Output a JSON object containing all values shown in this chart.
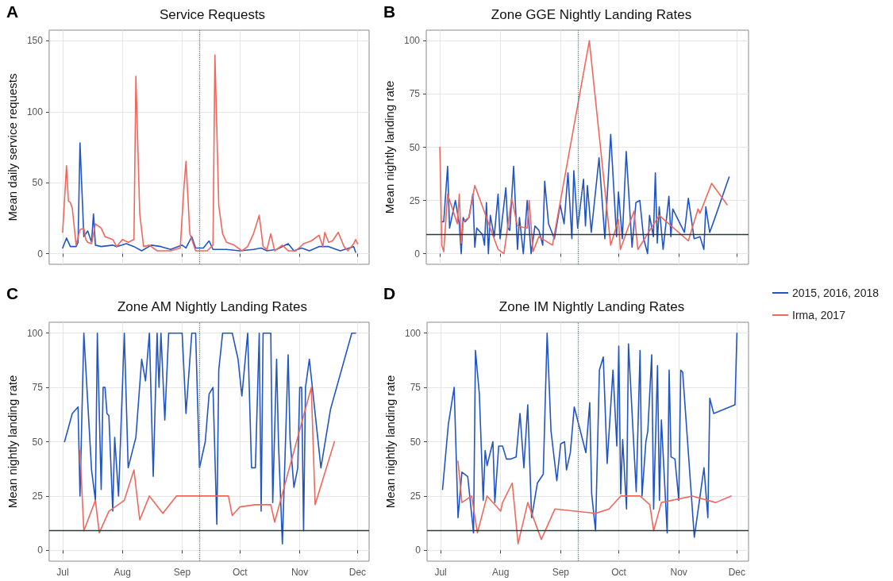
{
  "chart_data": [
    {
      "type": "line",
      "title": "Service Requests",
      "ylabel": "Mean daily service requests",
      "annotations": [
        "A"
      ],
      "xlim": [
        "--06-24",
        "--12-07"
      ],
      "xticks": [
        {
          "value": "--07-01",
          "label": "Jul"
        },
        {
          "value": "--08-01",
          "label": "Aug"
        },
        {
          "value": "--09-01",
          "label": "Sep"
        },
        {
          "value": "--10-01",
          "label": "Oct"
        },
        {
          "value": "--11-01",
          "label": "Nov"
        },
        {
          "value": "--12-01",
          "label": "Dec"
        }
      ],
      "ylim": [
        -7.5,
        157.5
      ],
      "yticks": [
        0,
        50,
        100,
        150
      ],
      "tick_labels": "y",
      "grid": true,
      "legend": false,
      "ref_lines": [
        {
          "axis": "x",
          "value": "--09-10",
          "color": "#5f7f7f",
          "line_style": "dotted"
        }
      ],
      "series": [
        {
          "color": "#2255c4",
          "x": [
            "--07-01",
            "--07-03",
            "--07-05",
            "--07-08",
            "--07-09",
            "--07-10",
            "--07-12",
            "--07-14",
            "--07-16",
            "--07-17",
            "--07-18",
            "--07-21",
            "--07-27",
            "--07-29",
            "--08-03",
            "--08-07",
            "--08-11",
            "--08-16",
            "--08-21",
            "--08-26",
            "--09-01",
            "--09-03",
            "--09-06",
            "--09-08",
            "--09-12",
            "--09-15",
            "--09-17",
            "--09-24",
            "--10-01",
            "--10-08",
            "--10-12",
            "--10-15",
            "--10-20",
            "--10-26",
            "--10-29",
            "--11-02",
            "--11-06",
            "--11-11",
            "--11-16",
            "--11-22",
            "--11-29",
            "--11-30"
          ],
          "values": [
            4,
            11,
            5,
            5,
            8,
            78,
            12,
            16,
            8,
            28,
            6,
            5,
            6,
            5,
            7,
            5,
            2,
            6,
            5,
            3,
            6,
            4,
            12,
            4,
            4,
            9,
            3,
            3,
            2,
            3,
            4,
            2,
            3,
            7,
            2,
            4,
            2,
            5,
            5,
            2,
            5,
            1
          ]
        },
        {
          "color": "#f2675c",
          "x": [
            "--07-01",
            "--07-03",
            "--07-04",
            "--07-05",
            "--07-06",
            "--07-08",
            "--07-10",
            "--07-12",
            "--07-13",
            "--07-14",
            "--07-16",
            "--07-18",
            "--07-21",
            "--07-23",
            "--07-27",
            "--07-29",
            "--08-01",
            "--08-04",
            "--08-07",
            "--08-08",
            "--08-10",
            "--08-12",
            "--08-15",
            "--08-19",
            "--08-26",
            "--08-31",
            "--09-02",
            "--09-03",
            "--09-05",
            "--09-08",
            "--09-14",
            "--09-17",
            "--09-18",
            "--09-20",
            "--09-22",
            "--09-24",
            "--09-28",
            "--10-02",
            "--10-05",
            "--10-08",
            "--10-11",
            "--10-13",
            "--10-15",
            "--10-17",
            "--10-19",
            "--10-23",
            "--10-26",
            "--10-30",
            "--11-03",
            "--11-07",
            "--11-11",
            "--11-13",
            "--11-14",
            "--11-16",
            "--11-18",
            "--11-21",
            "--11-24",
            "--11-26",
            "--11-29",
            "--11-30",
            "--12-01"
          ],
          "values": [
            15,
            62,
            37,
            36,
            32,
            6,
            17,
            18,
            10,
            8,
            7,
            21,
            18,
            12,
            10,
            5,
            10,
            8,
            10,
            125,
            28,
            5,
            6,
            2,
            2,
            4,
            48,
            65,
            14,
            2,
            2,
            6,
            140,
            34,
            14,
            8,
            6,
            2,
            5,
            14,
            27,
            5,
            3,
            14,
            2,
            6,
            2,
            2,
            7,
            9,
            13,
            5,
            15,
            8,
            9,
            15,
            5,
            2,
            7,
            10,
            7
          ]
        }
      ]
    },
    {
      "type": "line",
      "title": "Zone GGE Nightly Landing Rates",
      "ylabel": "Mean nightly landing rate",
      "annotations": [
        "B"
      ],
      "xlim": [
        "--06-24",
        "--12-07"
      ],
      "xticks": [
        {
          "value": "--07-01",
          "label": "Jul"
        },
        {
          "value": "--08-01",
          "label": "Aug"
        },
        {
          "value": "--09-01",
          "label": "Sep"
        },
        {
          "value": "--10-01",
          "label": "Oct"
        },
        {
          "value": "--11-01",
          "label": "Nov"
        },
        {
          "value": "--12-01",
          "label": "Dec"
        }
      ],
      "ylim": [
        -5,
        105
      ],
      "yticks": [
        0,
        25,
        50,
        75,
        100
      ],
      "tick_labels": "y",
      "grid": true,
      "legend": false,
      "ref_lines": [
        {
          "axis": "x",
          "value": "--09-10",
          "color": "#5f7f7f",
          "line_style": "dotted"
        },
        {
          "axis": "y",
          "value": 9,
          "color": "#2b3a3a",
          "line_style": "solid"
        }
      ],
      "series": [
        {
          "color": "#2255c4",
          "x": [
            "--07-02",
            "--07-03",
            "--07-05",
            "--07-06",
            "--07-09",
            "--07-11",
            "--07-12",
            "--07-13",
            "--07-14",
            "--07-16",
            "--07-18",
            "--07-19",
            "--07-20",
            "--07-23",
            "--07-24",
            "--07-25",
            "--07-26",
            "--07-27",
            "--07-29",
            "--07-31",
            "--08-01",
            "--08-04",
            "--08-05",
            "--08-06",
            "--08-08",
            "--08-10",
            "--08-11",
            "--08-13",
            "--08-15",
            "--08-17",
            "--08-19",
            "--08-21",
            "--08-23",
            "--08-24",
            "--08-26",
            "--08-29",
            "--09-01",
            "--09-03",
            "--09-05",
            "--09-07",
            "--09-08",
            "--09-10",
            "--09-13",
            "--09-14",
            "--09-15",
            "--09-17",
            "--09-21",
            "--09-24",
            "--09-27",
            "--09-30",
            "--10-01",
            "--10-03",
            "--10-05",
            "--10-08",
            "--10-10",
            "--10-12",
            "--10-14",
            "--10-16",
            "--10-17",
            "--10-19",
            "--10-20",
            "--10-21",
            "--10-22",
            "--10-24",
            "--10-27",
            "--10-28",
            "--10-29",
            "--11-04",
            "--11-06",
            "--11-09",
            "--11-12",
            "--11-14",
            "--11-15",
            "--11-17",
            "--11-19",
            "--11-27"
          ],
          "values": [
            15,
            15,
            41,
            12,
            25,
            14,
            0,
            17,
            15,
            17,
            28,
            3,
            12,
            9,
            4,
            24,
            0,
            18,
            8,
            28,
            7,
            31,
            12,
            11,
            41,
            2,
            17,
            0,
            25,
            0,
            13,
            11,
            4,
            34,
            14,
            7,
            23,
            14,
            38,
            7,
            39,
            12,
            35,
            13,
            32,
            10,
            45,
            7,
            56,
            8,
            29,
            7,
            48,
            3,
            24,
            25,
            7,
            0,
            18,
            8,
            38,
            5,
            22,
            2,
            27,
            8,
            21,
            10,
            26,
            7,
            8,
            2,
            22,
            10,
            15,
            36
          ]
        },
        {
          "color": "#f2675c",
          "x": [
            "--07-01",
            "--07-02",
            "--07-03",
            "--07-05",
            "--07-10",
            "--07-11",
            "--07-12",
            "--07-13",
            "--07-16",
            "--07-19",
            "--07-31",
            "--08-03",
            "--08-07",
            "--08-10",
            "--08-15",
            "--08-16",
            "--08-18",
            "--08-21",
            "--08-28",
            "--09-16",
            "--09-27",
            "--10-01",
            "--10-02",
            "--10-09",
            "--10-11",
            "--10-22",
            "--11-06",
            "--11-11",
            "--11-12",
            "--11-18",
            "--11-26"
          ],
          "values": [
            50,
            4,
            1,
            28,
            14,
            28,
            5,
            15,
            17,
            32,
            2,
            0,
            26,
            13,
            12,
            25,
            1,
            8,
            4,
            100,
            4,
            16,
            2,
            20,
            2,
            18,
            6,
            21,
            19,
            33,
            23
          ]
        }
      ]
    },
    {
      "type": "line",
      "title": "Zone AM Nightly Landing Rates",
      "ylabel": "Mean nightly landing rate",
      "annotations": [
        "C"
      ],
      "xlim": [
        "--06-24",
        "--12-07"
      ],
      "xticks": [
        {
          "value": "--07-01",
          "label": "Jul"
        },
        {
          "value": "--08-01",
          "label": "Aug"
        },
        {
          "value": "--09-01",
          "label": "Sep"
        },
        {
          "value": "--10-01",
          "label": "Oct"
        },
        {
          "value": "--11-01",
          "label": "Nov"
        },
        {
          "value": "--12-01",
          "label": "Dec"
        }
      ],
      "ylim": [
        -5,
        105
      ],
      "yticks": [
        0,
        25,
        50,
        75,
        100
      ],
      "grid": true,
      "legend": false,
      "ref_lines": [
        {
          "axis": "x",
          "value": "--09-10",
          "color": "#5f7f7f",
          "line_style": "dotted"
        },
        {
          "axis": "y",
          "value": 9,
          "color": "#2b3a3a",
          "line_style": "solid"
        }
      ],
      "series": [
        {
          "color": "#2255c4",
          "x": [
            "--07-02",
            "--07-06",
            "--07-09",
            "--07-10",
            "--07-12",
            "--07-16",
            "--07-18",
            "--07-19",
            "--07-21",
            "--07-22",
            "--07-23",
            "--07-24",
            "--07-25",
            "--07-27",
            "--07-28",
            "--07-30",
            "--08-02",
            "--08-04",
            "--08-08",
            "--08-11",
            "--08-13",
            "--08-15",
            "--08-17",
            "--08-19",
            "--08-20",
            "--08-21",
            "--08-23",
            "--08-25",
            "--09-01",
            "--09-03",
            "--09-06",
            "--09-08",
            "--09-10",
            "--09-13",
            "--09-15",
            "--09-17",
            "--09-19",
            "--09-20",
            "--09-22",
            "--09-27",
            "--09-30",
            "--10-02",
            "--10-05",
            "--10-07",
            "--10-09",
            "--10-11",
            "--10-12",
            "--10-13",
            "--10-17",
            "--10-18",
            "--10-20",
            "--10-21",
            "--10-23",
            "--10-26",
            "--10-27",
            "--10-29",
            "--10-31",
            "--11-01",
            "--11-02",
            "--11-03",
            "--11-04",
            "--11-06",
            "--11-12",
            "--11-17",
            "--11-28",
            "--11-30"
          ],
          "values": [
            50,
            63,
            66,
            25,
            100,
            37,
            23,
            100,
            28,
            75,
            75,
            63,
            62,
            18,
            52,
            25,
            100,
            38,
            52,
            88,
            78,
            100,
            34,
            100,
            75,
            100,
            60,
            100,
            100,
            63,
            100,
            100,
            38,
            50,
            72,
            75,
            12,
            83,
            100,
            100,
            88,
            71,
            100,
            38,
            38,
            100,
            18,
            100,
            100,
            22,
            88,
            49,
            3,
            90,
            51,
            29,
            38,
            75,
            75,
            9,
            75,
            88,
            38,
            65,
            100,
            100
          ]
        },
        {
          "color": "#f2675c",
          "x": [
            "--07-10",
            "--07-12",
            "--07-18",
            "--07-20",
            "--07-25",
            "--08-02",
            "--08-07",
            "--08-10",
            "--08-15",
            "--08-22",
            "--08-29",
            "--09-25",
            "--09-27",
            "--10-01",
            "--10-09",
            "--10-17",
            "--10-19",
            "--11-07",
            "--11-09",
            "--11-19"
          ],
          "values": [
            46,
            9,
            23,
            8,
            18,
            23,
            37,
            14,
            25,
            17,
            25,
            25,
            16,
            20,
            21,
            21,
            13,
            75,
            21,
            50
          ]
        }
      ]
    },
    {
      "type": "line",
      "title": "Zone IM Nightly Landing Rates",
      "ylabel": "Mean nightly landing rate",
      "annotations": [
        "D"
      ],
      "xlim": [
        "--06-24",
        "--12-07"
      ],
      "xticks": [
        {
          "value": "--07-01",
          "label": "Jul"
        },
        {
          "value": "--08-01",
          "label": "Aug"
        },
        {
          "value": "--09-01",
          "label": "Sep"
        },
        {
          "value": "--10-01",
          "label": "Oct"
        },
        {
          "value": "--11-01",
          "label": "Nov"
        },
        {
          "value": "--12-01",
          "label": "Dec"
        }
      ],
      "ylim": [
        -5,
        105
      ],
      "yticks": [
        0,
        25,
        50,
        75,
        100
      ],
      "grid": true,
      "legend": "right",
      "ref_lines": [
        {
          "axis": "x",
          "value": "--09-10",
          "color": "#5f7f7f",
          "line_style": "dotted"
        },
        {
          "axis": "y",
          "value": 9,
          "color": "#2b3a3a",
          "line_style": "solid"
        }
      ],
      "series": [
        {
          "name": "2015, 2016, 2018",
          "color": "#2255c4",
          "x": [
            "--07-02",
            "--07-05",
            "--07-08",
            "--07-10",
            "--07-12",
            "--07-15",
            "--07-18",
            "--07-19",
            "--07-21",
            "--07-23",
            "--07-24",
            "--07-25",
            "--07-28",
            "--07-29",
            "--07-31",
            "--08-02",
            "--08-04",
            "--08-06",
            "--08-09",
            "--08-11",
            "--08-13",
            "--08-15",
            "--08-17",
            "--08-20",
            "--08-23",
            "--08-25",
            "--08-27",
            "--08-30",
            "--09-01",
            "--09-03",
            "--09-04",
            "--09-06",
            "--09-08",
            "--09-14",
            "--09-16",
            "--09-17",
            "--09-19",
            "--09-21",
            "--09-23",
            "--09-25",
            "--09-28",
            "--09-30",
            "--10-01",
            "--10-02",
            "--10-03",
            "--10-05",
            "--10-06",
            "--10-10",
            "--10-12",
            "--10-13",
            "--10-15",
            "--10-16",
            "--10-18",
            "--10-19",
            "--10-21",
            "--10-22",
            "--10-23",
            "--10-26",
            "--10-27",
            "--10-28",
            "--10-30",
            "--11-01",
            "--11-02",
            "--11-03",
            "--11-09",
            "--11-14",
            "--11-16",
            "--11-17",
            "--11-19",
            "--11-30",
            "--12-01"
          ],
          "values": [
            28,
            58,
            75,
            15,
            36,
            34,
            8,
            92,
            72,
            23,
            46,
            39,
            50,
            22,
            48,
            48,
            42,
            42,
            43,
            63,
            38,
            67,
            15,
            31,
            35,
            100,
            55,
            32,
            49,
            50,
            37,
            45,
            66,
            45,
            68,
            26,
            9,
            83,
            89,
            40,
            83,
            48,
            94,
            26,
            51,
            19,
            95,
            27,
            92,
            25,
            50,
            55,
            90,
            19,
            85,
            23,
            60,
            8,
            83,
            43,
            42,
            23,
            83,
            82,
            6,
            38,
            15,
            70,
            63,
            67,
            100
          ]
        },
        {
          "name": "Irma, 2017",
          "color": "#f2675c",
          "x": [
            "--07-10",
            "--07-12",
            "--07-17",
            "--07-20",
            "--07-25",
            "--08-01",
            "--08-02",
            "--08-07",
            "--08-10",
            "--08-15",
            "--08-22",
            "--08-29",
            "--09-19",
            "--09-26",
            "--10-02",
            "--10-12",
            "--10-17",
            "--10-19",
            "--10-23",
            "--11-08",
            "--11-20",
            "--11-28"
          ],
          "values": [
            41,
            22,
            25,
            8,
            25,
            18,
            22,
            31,
            3,
            22,
            5,
            19,
            17,
            19,
            25,
            25,
            21,
            9,
            22,
            25,
            22,
            25
          ]
        }
      ]
    }
  ]
}
